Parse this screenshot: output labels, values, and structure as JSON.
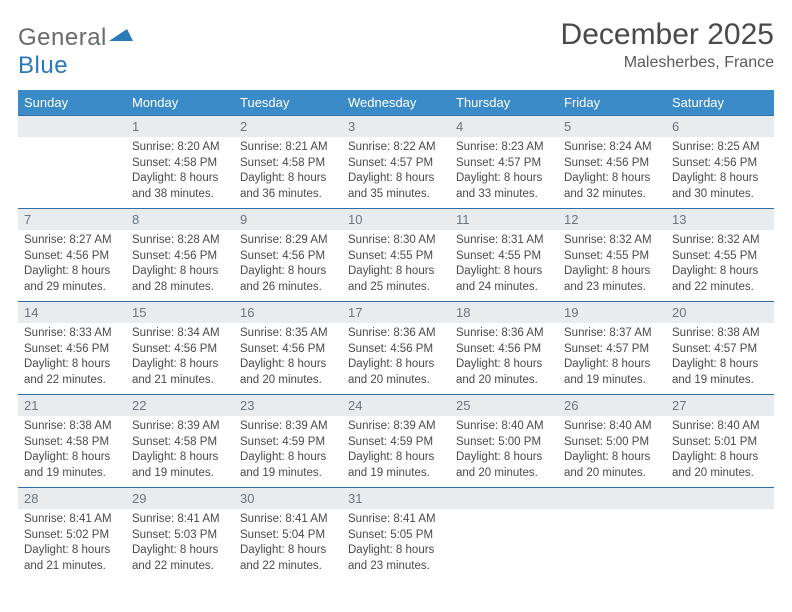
{
  "logo": {
    "word1": "General",
    "word2": "Blue"
  },
  "title": "December 2025",
  "location": "Malesherbes, France",
  "colors": {
    "header_bg": "#3b8bc8",
    "header_text": "#ffffff",
    "daynum_bg": "#e9ecee",
    "daynum_border": "#2f6fa3",
    "daynum_text": "#6a7680",
    "body_text": "#4a4a4a",
    "logo_gray": "#6a6a6a",
    "logo_blue": "#2a7ab8"
  },
  "typography": {
    "title_fontsize": 30,
    "location_fontsize": 16,
    "header_fontsize": 13,
    "daynum_fontsize": 13,
    "cell_fontsize": 11.5
  },
  "weekdays": [
    "Sunday",
    "Monday",
    "Tuesday",
    "Wednesday",
    "Thursday",
    "Friday",
    "Saturday"
  ],
  "weeks": [
    [
      null,
      {
        "n": "1",
        "sunrise": "8:20 AM",
        "sunset": "4:58 PM",
        "daylight": "8 hours and 38 minutes."
      },
      {
        "n": "2",
        "sunrise": "8:21 AM",
        "sunset": "4:58 PM",
        "daylight": "8 hours and 36 minutes."
      },
      {
        "n": "3",
        "sunrise": "8:22 AM",
        "sunset": "4:57 PM",
        "daylight": "8 hours and 35 minutes."
      },
      {
        "n": "4",
        "sunrise": "8:23 AM",
        "sunset": "4:57 PM",
        "daylight": "8 hours and 33 minutes."
      },
      {
        "n": "5",
        "sunrise": "8:24 AM",
        "sunset": "4:56 PM",
        "daylight": "8 hours and 32 minutes."
      },
      {
        "n": "6",
        "sunrise": "8:25 AM",
        "sunset": "4:56 PM",
        "daylight": "8 hours and 30 minutes."
      }
    ],
    [
      {
        "n": "7",
        "sunrise": "8:27 AM",
        "sunset": "4:56 PM",
        "daylight": "8 hours and 29 minutes."
      },
      {
        "n": "8",
        "sunrise": "8:28 AM",
        "sunset": "4:56 PM",
        "daylight": "8 hours and 28 minutes."
      },
      {
        "n": "9",
        "sunrise": "8:29 AM",
        "sunset": "4:56 PM",
        "daylight": "8 hours and 26 minutes."
      },
      {
        "n": "10",
        "sunrise": "8:30 AM",
        "sunset": "4:55 PM",
        "daylight": "8 hours and 25 minutes."
      },
      {
        "n": "11",
        "sunrise": "8:31 AM",
        "sunset": "4:55 PM",
        "daylight": "8 hours and 24 minutes."
      },
      {
        "n": "12",
        "sunrise": "8:32 AM",
        "sunset": "4:55 PM",
        "daylight": "8 hours and 23 minutes."
      },
      {
        "n": "13",
        "sunrise": "8:32 AM",
        "sunset": "4:55 PM",
        "daylight": "8 hours and 22 minutes."
      }
    ],
    [
      {
        "n": "14",
        "sunrise": "8:33 AM",
        "sunset": "4:56 PM",
        "daylight": "8 hours and 22 minutes."
      },
      {
        "n": "15",
        "sunrise": "8:34 AM",
        "sunset": "4:56 PM",
        "daylight": "8 hours and 21 minutes."
      },
      {
        "n": "16",
        "sunrise": "8:35 AM",
        "sunset": "4:56 PM",
        "daylight": "8 hours and 20 minutes."
      },
      {
        "n": "17",
        "sunrise": "8:36 AM",
        "sunset": "4:56 PM",
        "daylight": "8 hours and 20 minutes."
      },
      {
        "n": "18",
        "sunrise": "8:36 AM",
        "sunset": "4:56 PM",
        "daylight": "8 hours and 20 minutes."
      },
      {
        "n": "19",
        "sunrise": "8:37 AM",
        "sunset": "4:57 PM",
        "daylight": "8 hours and 19 minutes."
      },
      {
        "n": "20",
        "sunrise": "8:38 AM",
        "sunset": "4:57 PM",
        "daylight": "8 hours and 19 minutes."
      }
    ],
    [
      {
        "n": "21",
        "sunrise": "8:38 AM",
        "sunset": "4:58 PM",
        "daylight": "8 hours and 19 minutes."
      },
      {
        "n": "22",
        "sunrise": "8:39 AM",
        "sunset": "4:58 PM",
        "daylight": "8 hours and 19 minutes."
      },
      {
        "n": "23",
        "sunrise": "8:39 AM",
        "sunset": "4:59 PM",
        "daylight": "8 hours and 19 minutes."
      },
      {
        "n": "24",
        "sunrise": "8:39 AM",
        "sunset": "4:59 PM",
        "daylight": "8 hours and 19 minutes."
      },
      {
        "n": "25",
        "sunrise": "8:40 AM",
        "sunset": "5:00 PM",
        "daylight": "8 hours and 20 minutes."
      },
      {
        "n": "26",
        "sunrise": "8:40 AM",
        "sunset": "5:00 PM",
        "daylight": "8 hours and 20 minutes."
      },
      {
        "n": "27",
        "sunrise": "8:40 AM",
        "sunset": "5:01 PM",
        "daylight": "8 hours and 20 minutes."
      }
    ],
    [
      {
        "n": "28",
        "sunrise": "8:41 AM",
        "sunset": "5:02 PM",
        "daylight": "8 hours and 21 minutes."
      },
      {
        "n": "29",
        "sunrise": "8:41 AM",
        "sunset": "5:03 PM",
        "daylight": "8 hours and 22 minutes."
      },
      {
        "n": "30",
        "sunrise": "8:41 AM",
        "sunset": "5:04 PM",
        "daylight": "8 hours and 22 minutes."
      },
      {
        "n": "31",
        "sunrise": "8:41 AM",
        "sunset": "5:05 PM",
        "daylight": "8 hours and 23 minutes."
      },
      null,
      null,
      null
    ]
  ],
  "labels": {
    "sunrise": "Sunrise:",
    "sunset": "Sunset:",
    "daylight": "Daylight:"
  }
}
